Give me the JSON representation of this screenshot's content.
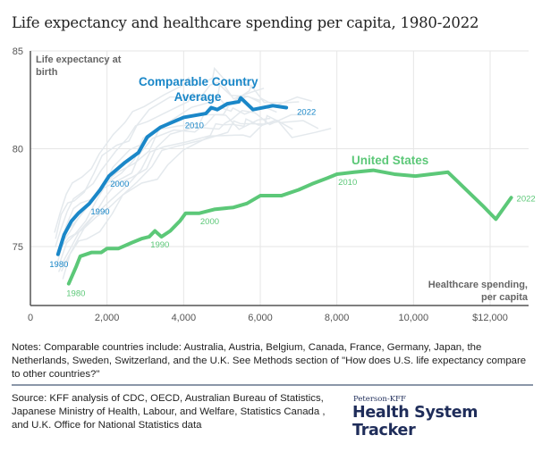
{
  "title": "Life expectancy and healthcare spending per capita, 1980-2022",
  "colors": {
    "comparable": "#1a87c8",
    "us": "#5cc878",
    "background_countries": "#e4e9ed",
    "grid": "#e6e6e6",
    "axis": "#555555",
    "logo": "#1f2d5a"
  },
  "chart_data": {
    "type": "line",
    "title": "Life expectancy and healthcare spending per capita, 1980-2022",
    "xlabel": "Healthcare spending, per capita",
    "ylabel": "Life expectancy at birth",
    "xlim": [
      0,
      13000
    ],
    "ylim": [
      72,
      85
    ],
    "x_ticks": [
      0,
      2000,
      4000,
      6000,
      8000,
      10000,
      12000
    ],
    "x_tick_labels": [
      "0",
      "2,000",
      "4,000",
      "6,000",
      "8,000",
      "10,000",
      "$12,000"
    ],
    "y_ticks": [
      75,
      80,
      85
    ],
    "y_tick_labels": [
      "75",
      "80",
      "85"
    ],
    "grid": true,
    "series": [
      {
        "name": "Comparable Country Average",
        "label": "Comparable Country\nAverage",
        "points": [
          [
            720,
            74.6
          ],
          [
            880,
            75.6
          ],
          [
            1070,
            76.3
          ],
          [
            1250,
            76.7
          ],
          [
            1540,
            77.2
          ],
          [
            1820,
            77.9
          ],
          [
            2050,
            78.6
          ],
          [
            2470,
            79.3
          ],
          [
            2820,
            79.8
          ],
          [
            3050,
            80.6
          ],
          [
            3400,
            81.1
          ],
          [
            4000,
            81.6
          ],
          [
            4580,
            81.8
          ],
          [
            4720,
            82.1
          ],
          [
            4880,
            82.0
          ],
          [
            5140,
            82.3
          ],
          [
            5440,
            82.4
          ],
          [
            5490,
            82.6
          ],
          [
            5810,
            82.0
          ],
          [
            6330,
            82.2
          ],
          [
            6680,
            82.1
          ]
        ],
        "year_labels": [
          {
            "year": "1980",
            "index": 0
          },
          {
            "year": "1990",
            "index": 4
          },
          {
            "year": "2000",
            "index": 6
          },
          {
            "year": "2010",
            "index": 11
          },
          {
            "year": "2022",
            "index": 20
          }
        ]
      },
      {
        "name": "United States",
        "label": "United States",
        "points": [
          [
            1000,
            73.1
          ],
          [
            1200,
            74.0
          ],
          [
            1300,
            74.5
          ],
          [
            1600,
            74.7
          ],
          [
            1850,
            74.7
          ],
          [
            2000,
            74.9
          ],
          [
            2300,
            74.9
          ],
          [
            2650,
            75.2
          ],
          [
            2900,
            75.4
          ],
          [
            3100,
            75.5
          ],
          [
            3250,
            75.8
          ],
          [
            3420,
            75.5
          ],
          [
            3650,
            75.8
          ],
          [
            3900,
            76.3
          ],
          [
            4050,
            76.7
          ],
          [
            4400,
            76.7
          ],
          [
            4800,
            76.9
          ],
          [
            5300,
            77.0
          ],
          [
            5650,
            77.2
          ],
          [
            6000,
            77.6
          ],
          [
            6550,
            77.6
          ],
          [
            7000,
            77.9
          ],
          [
            7350,
            78.2
          ],
          [
            7750,
            78.5
          ],
          [
            8000,
            78.7
          ],
          [
            8450,
            78.8
          ],
          [
            8950,
            78.9
          ],
          [
            9500,
            78.7
          ],
          [
            10050,
            78.6
          ],
          [
            10900,
            78.8
          ],
          [
            11800,
            77.1
          ],
          [
            12150,
            76.4
          ],
          [
            12550,
            77.5
          ]
        ],
        "year_labels": [
          {
            "year": "1980",
            "index": 0
          },
          {
            "year": "1990",
            "index": 9
          },
          {
            "year": "2000",
            "index": 15
          },
          {
            "year": "2010",
            "index": 24
          },
          {
            "year": "2022",
            "index": 32
          }
        ]
      }
    ],
    "background_series_note": "Individual comparable countries shown as light gray lines"
  },
  "notes": "Notes: Comparable countries include: Australia, Austria, Belgium, Canada, France, Germany, Japan, the Netherlands, Sweden, Switzerland, and the U.K. See Methods section of \"How does U.S. life expectancy compare to other countries?\"",
  "source": "Source: KFF analysis of CDC, OECD, Australian Bureau of Statistics, Japanese Ministry of Health, Labour, and Welfare, Statistics Canada , and U.K. Office for National Statistics data",
  "logo": {
    "small": "Peterson-KFF",
    "big": "Health System Tracker"
  }
}
